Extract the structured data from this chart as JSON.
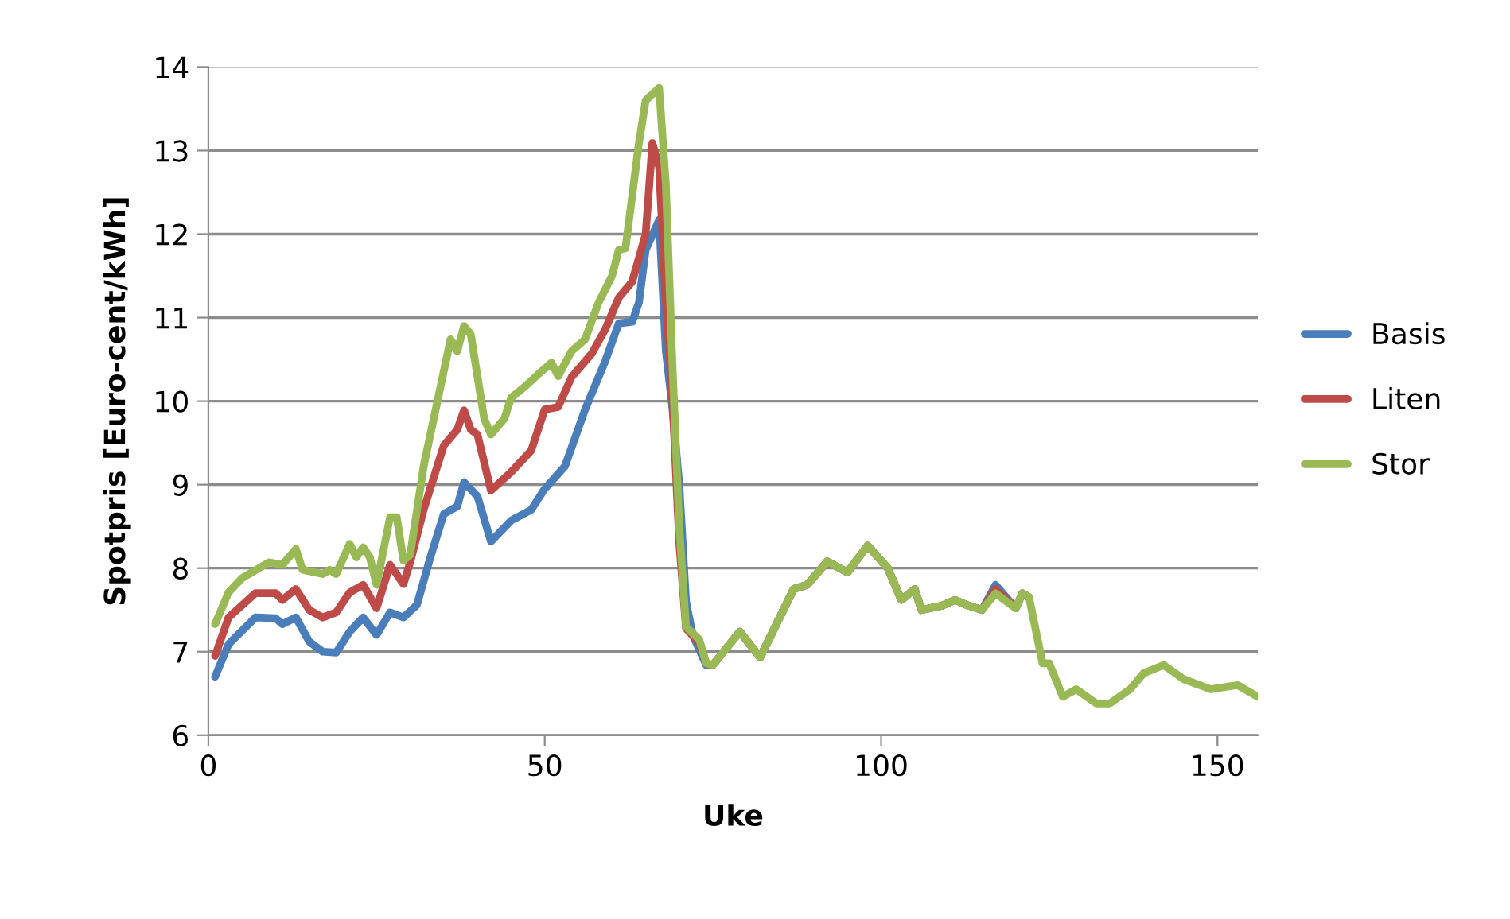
{
  "chart_data": {
    "type": "line",
    "xlabel": "Uke",
    "ylabel": "Spotpris [Euro-cent/kWh]",
    "xlim": [
      0,
      156
    ],
    "xticks": [
      0,
      50,
      100,
      150
    ],
    "ylim": [
      6,
      14
    ],
    "yticks": [
      6,
      7,
      8,
      9,
      10,
      11,
      12,
      13,
      14
    ],
    "grid": "y",
    "legend": "right",
    "marker": "none",
    "line_style": "solid",
    "series": [
      {
        "name": "Basis",
        "color": "#4a7ebb",
        "x": [
          1,
          3,
          7,
          10,
          11,
          13,
          15,
          17,
          19,
          21,
          23,
          25,
          27,
          29,
          31,
          33,
          35,
          37,
          38,
          40,
          42,
          45,
          48,
          50,
          53,
          56,
          59,
          61,
          63,
          64,
          65,
          67,
          68,
          69,
          70,
          71,
          72,
          74,
          75,
          79,
          82,
          87,
          89,
          92,
          95,
          98,
          101,
          103,
          105,
          106,
          109,
          111,
          113,
          115,
          117,
          120,
          121,
          122
        ],
        "values": [
          6.7,
          7.09,
          7.41,
          7.4,
          7.33,
          7.41,
          7.12,
          7.0,
          6.99,
          7.24,
          7.41,
          7.2,
          7.47,
          7.41,
          7.56,
          8.13,
          8.65,
          8.74,
          9.03,
          8.86,
          8.32,
          8.57,
          8.7,
          8.95,
          9.22,
          9.9,
          10.48,
          10.93,
          10.95,
          11.18,
          11.81,
          12.17,
          10.6,
          9.9,
          9.0,
          7.6,
          7.2,
          6.84,
          6.84,
          7.24,
          6.93,
          7.75,
          7.8,
          8.08,
          7.95,
          8.27,
          8.0,
          7.62,
          7.75,
          7.5,
          7.55,
          7.62,
          7.55,
          7.5,
          7.8,
          7.52,
          7.7,
          7.65
        ]
      },
      {
        "name": "Liten",
        "color": "#be4b48",
        "x": [
          1,
          3,
          7,
          10,
          11,
          13,
          15,
          17,
          19,
          21,
          23,
          25,
          27,
          29,
          30,
          32,
          35,
          37,
          38,
          39,
          40,
          42,
          45,
          48,
          50,
          52,
          54,
          57,
          59,
          61,
          63,
          65,
          66,
          67,
          68,
          69,
          70,
          71,
          73,
          74,
          75,
          79,
          82,
          87,
          89,
          92,
          95,
          98,
          101,
          103,
          105,
          106,
          109,
          111,
          113,
          115,
          117,
          120,
          121,
          122
        ],
        "values": [
          6.95,
          7.41,
          7.7,
          7.7,
          7.62,
          7.75,
          7.5,
          7.41,
          7.47,
          7.71,
          7.8,
          7.52,
          8.04,
          7.81,
          8.07,
          8.7,
          9.47,
          9.66,
          9.89,
          9.66,
          9.6,
          8.93,
          9.15,
          9.41,
          9.9,
          9.93,
          10.29,
          10.57,
          10.86,
          11.24,
          11.43,
          12.0,
          13.09,
          12.8,
          11.2,
          10.0,
          8.3,
          7.28,
          7.1,
          6.86,
          6.84,
          7.24,
          6.93,
          7.75,
          7.8,
          8.08,
          7.95,
          8.27,
          8.0,
          7.62,
          7.75,
          7.5,
          7.55,
          7.62,
          7.55,
          7.5,
          7.75,
          7.52,
          7.7,
          7.65
        ]
      },
      {
        "name": "Stor",
        "color": "#98b954",
        "x": [
          1,
          3,
          5,
          9,
          11,
          13,
          14,
          17,
          18,
          19,
          21,
          22,
          23,
          24,
          25,
          27,
          28,
          29,
          30,
          32,
          33,
          36,
          37,
          38,
          39,
          41,
          42,
          44,
          45,
          47,
          49,
          51,
          52,
          54,
          56,
          58,
          60,
          61,
          62,
          64,
          65,
          67,
          68,
          69,
          70,
          71,
          73,
          74,
          75,
          79,
          82,
          87,
          89,
          92,
          95,
          98,
          101,
          103,
          105,
          106,
          109,
          111,
          113,
          115,
          117,
          120,
          121,
          122,
          124,
          125,
          127,
          129,
          132,
          134,
          137,
          139,
          142,
          145,
          149,
          153,
          156
        ],
        "values": [
          7.33,
          7.71,
          7.88,
          8.07,
          8.04,
          8.23,
          7.98,
          7.93,
          7.98,
          7.93,
          8.29,
          8.13,
          8.25,
          8.13,
          7.8,
          8.61,
          8.61,
          8.09,
          8.16,
          9.22,
          9.6,
          10.74,
          10.6,
          10.9,
          10.8,
          9.79,
          9.6,
          9.79,
          10.04,
          10.17,
          10.32,
          10.46,
          10.3,
          10.6,
          10.74,
          11.18,
          11.5,
          11.81,
          11.83,
          13.09,
          13.6,
          13.75,
          12.6,
          10.4,
          8.5,
          7.3,
          7.14,
          6.86,
          6.84,
          7.24,
          6.93,
          7.75,
          7.8,
          8.08,
          7.95,
          8.27,
          8.0,
          7.62,
          7.75,
          7.5,
          7.55,
          7.62,
          7.55,
          7.5,
          7.7,
          7.52,
          7.7,
          7.65,
          6.86,
          6.86,
          6.46,
          6.55,
          6.38,
          6.38,
          6.55,
          6.74,
          6.84,
          6.67,
          6.55,
          6.6,
          6.46
        ]
      }
    ]
  }
}
